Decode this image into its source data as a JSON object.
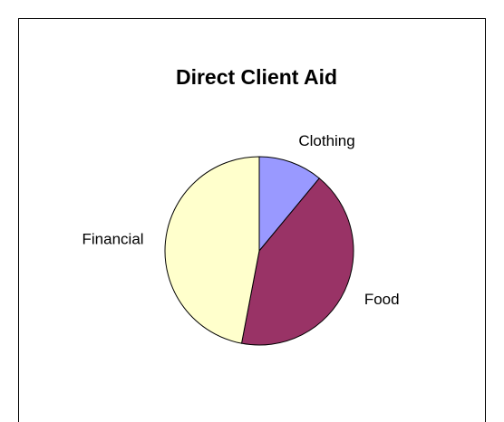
{
  "chart_data": {
    "type": "pie",
    "title": "Direct Client Aid",
    "categories": [
      "Clothing",
      "Food",
      "Financial"
    ],
    "values": [
      11,
      42,
      47
    ],
    "colors": [
      "#9999ff",
      "#993366",
      "#ffffcc"
    ]
  }
}
